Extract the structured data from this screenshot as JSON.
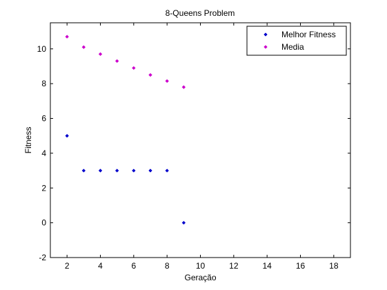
{
  "chart_data": {
    "type": "scatter",
    "title": "8-Queens Problem",
    "xlabel": "Geração",
    "ylabel": "Fitness",
    "xlim": [
      1,
      19
    ],
    "ylim": [
      -2,
      11.5
    ],
    "xticks": [
      2,
      4,
      6,
      8,
      10,
      12,
      14,
      16,
      18
    ],
    "yticks": [
      -2,
      0,
      2,
      4,
      6,
      8,
      10
    ],
    "grid": false,
    "legend_position": "top-right",
    "series": [
      {
        "name": "Melhor Fitness",
        "color": "#0000cc",
        "x": [
          2,
          3,
          4,
          5,
          6,
          7,
          8,
          9
        ],
        "y": [
          5,
          3,
          3,
          3,
          3,
          3,
          3,
          0
        ]
      },
      {
        "name": "Media",
        "color": "#cc00cc",
        "x": [
          2,
          3,
          4,
          5,
          6,
          7,
          8,
          9
        ],
        "y": [
          10.7,
          10.1,
          9.7,
          9.3,
          8.9,
          8.5,
          8.15,
          7.8
        ]
      }
    ]
  }
}
